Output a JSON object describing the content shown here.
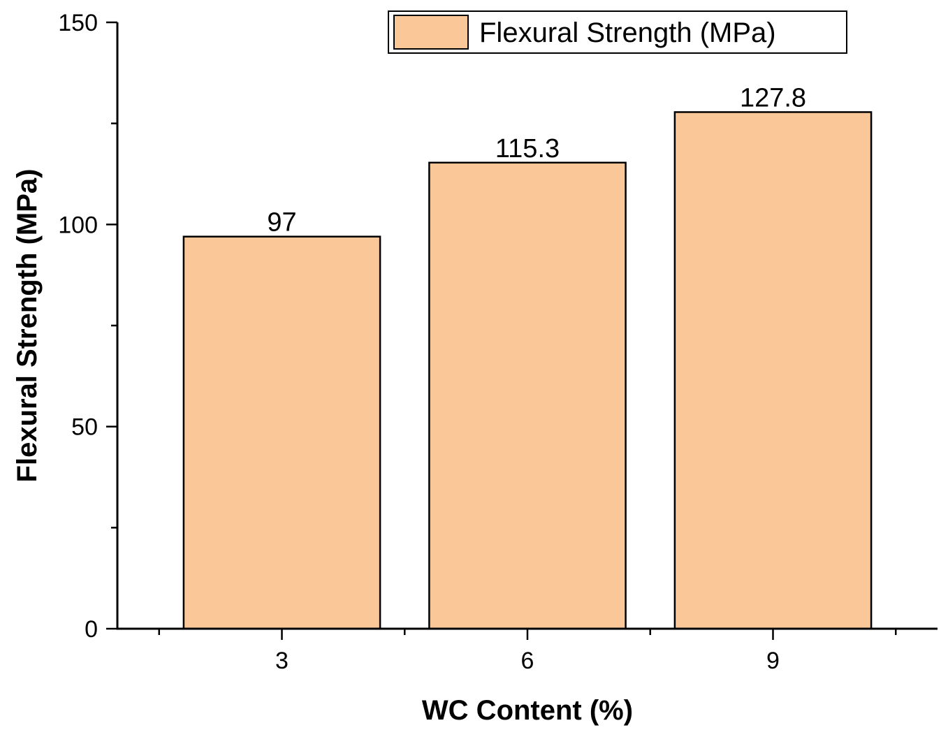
{
  "chart_data": {
    "type": "bar",
    "categories": [
      "3",
      "6",
      "9"
    ],
    "series": [
      {
        "name": "Flexural Strength (MPa)",
        "values": [
          97,
          115.3,
          127.8
        ]
      }
    ],
    "data_labels": [
      "97",
      "115.3",
      "127.8"
    ],
    "xlabel": "WC Content (%)",
    "ylabel": "Flexural Strength (MPa)",
    "ylim": [
      0,
      150
    ],
    "y_ticks": [
      "0",
      "50",
      "100",
      "150"
    ],
    "y_ticks_values": [
      0,
      50,
      100,
      150
    ],
    "y_minor_ticks_values": [
      25,
      75,
      125
    ],
    "grid": false,
    "legend_position": "top-right",
    "colors": {
      "bar_fill": "#FAC898",
      "bar_stroke": "#000000",
      "axis": "#000000"
    }
  }
}
